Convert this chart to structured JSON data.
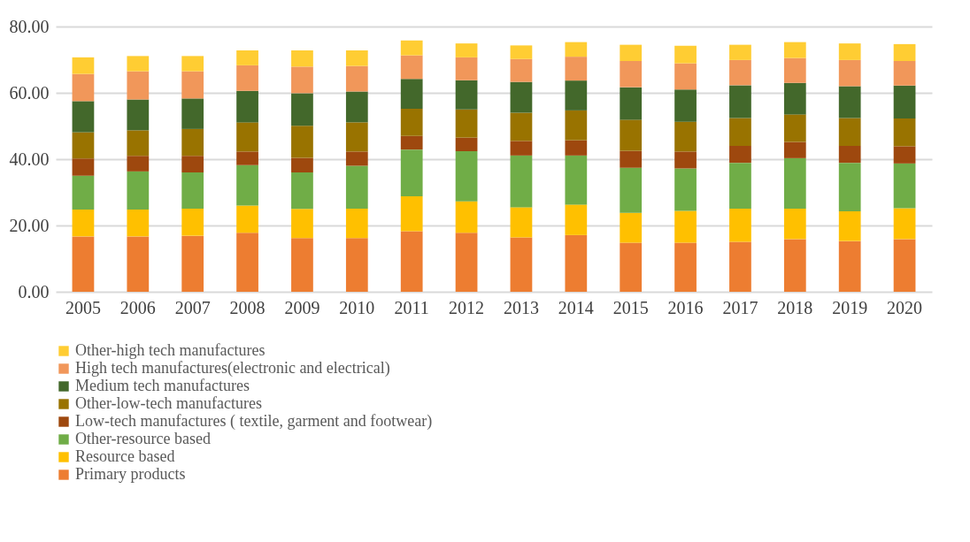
{
  "chart_data": {
    "type": "bar",
    "stacked": true,
    "categories": [
      "2005",
      "2006",
      "2007",
      "2008",
      "2009",
      "2010",
      "2011",
      "2012",
      "2013",
      "2014",
      "2015",
      "2016",
      "2017",
      "2018",
      "2019",
      "2020"
    ],
    "ylim": [
      0,
      80
    ],
    "yticks": [
      {
        "value": 0,
        "label": "0.00"
      },
      {
        "value": 20,
        "label": "20.00"
      },
      {
        "value": 40,
        "label": "40.00"
      },
      {
        "value": 60,
        "label": "60.00"
      },
      {
        "value": 80,
        "label": "80.00"
      }
    ],
    "grid": "y",
    "legend": "bottom",
    "series": [
      {
        "name": "Primary products",
        "color": "#ed7d31",
        "values": [
          16.7,
          16.7,
          16.9,
          17.8,
          16.2,
          16.2,
          18.3,
          17.8,
          16.4,
          17.1,
          14.8,
          14.8,
          15.1,
          15.9,
          15.3,
          15.9
        ]
      },
      {
        "name": "Resource based",
        "color": "#ffc000",
        "values": [
          8.1,
          8.1,
          8.2,
          8.2,
          8.8,
          8.9,
          10.5,
          9.5,
          9.1,
          9.2,
          9.0,
          9.6,
          10.0,
          9.2,
          9.0,
          9.3
        ]
      },
      {
        "name": "Other-resource based",
        "color": "#70ad47",
        "values": [
          10.2,
          11.5,
          10.9,
          12.2,
          11.0,
          12.9,
          14.1,
          15.1,
          15.6,
          14.8,
          13.6,
          12.8,
          13.8,
          15.2,
          14.6,
          13.5
        ]
      },
      {
        "name": "Low-tech manufactures ( textile, garment and footwear)",
        "color": "#9e480e",
        "values": [
          5.2,
          4.7,
          5.0,
          4.1,
          4.4,
          4.3,
          4.1,
          4.1,
          4.4,
          4.6,
          5.1,
          5.1,
          5.1,
          4.9,
          5.1,
          5.2
        ]
      },
      {
        "name": "Other-low-tech manufactures",
        "color": "#997300",
        "values": [
          7.9,
          7.7,
          8.1,
          8.8,
          9.7,
          8.8,
          8.2,
          8.5,
          8.5,
          9.0,
          9.4,
          9.0,
          8.4,
          8.3,
          8.4,
          8.4
        ]
      },
      {
        "name": "Medium tech manufactures",
        "color": "#43682b",
        "values": [
          9.4,
          9.3,
          9.2,
          9.5,
          9.8,
          9.3,
          9.0,
          8.8,
          9.3,
          9.0,
          9.8,
          9.7,
          9.9,
          9.5,
          9.6,
          9.9
        ]
      },
      {
        "name": "High tech manufactures(electronic and electrical)",
        "color": "#f1975a",
        "values": [
          8.2,
          8.5,
          8.2,
          7.7,
          8.0,
          7.7,
          7.1,
          6.9,
          6.9,
          7.2,
          7.9,
          7.9,
          7.6,
          7.5,
          7.9,
          7.4
        ]
      },
      {
        "name": "Other-high tech manufactures",
        "color": "#ffcd33",
        "values": [
          5.0,
          4.6,
          4.6,
          4.5,
          4.9,
          4.7,
          4.5,
          4.2,
          4.1,
          4.4,
          4.9,
          5.3,
          4.6,
          4.8,
          5.0,
          5.1
        ]
      }
    ]
  }
}
